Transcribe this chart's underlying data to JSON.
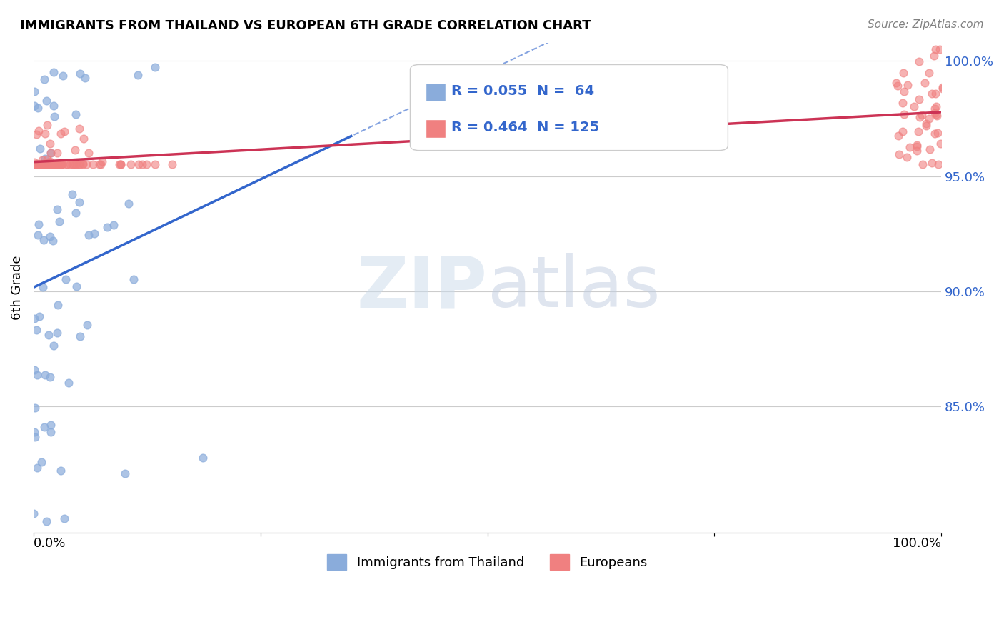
{
  "title": "IMMIGRANTS FROM THAILAND VS EUROPEAN 6TH GRADE CORRELATION CHART",
  "source": "Source: ZipAtlas.com",
  "ylabel": "6th Grade",
  "r_thailand": 0.055,
  "n_thailand": 64,
  "r_european": 0.464,
  "n_european": 125,
  "thailand_color": "#8AACDB",
  "european_color": "#F08080",
  "thailand_line_color": "#3366CC",
  "european_line_color": "#CC3355",
  "background_color": "#FFFFFF",
  "legend_r_color": "#3366CC",
  "xlim": [
    0.0,
    1.0
  ],
  "ylim_low": 0.795,
  "ylim_high": 1.008,
  "yticks": [
    0.85,
    0.9,
    0.95,
    1.0
  ],
  "ytick_labels": [
    "85.0%",
    "90.0%",
    "95.0%",
    "100.0%"
  ]
}
